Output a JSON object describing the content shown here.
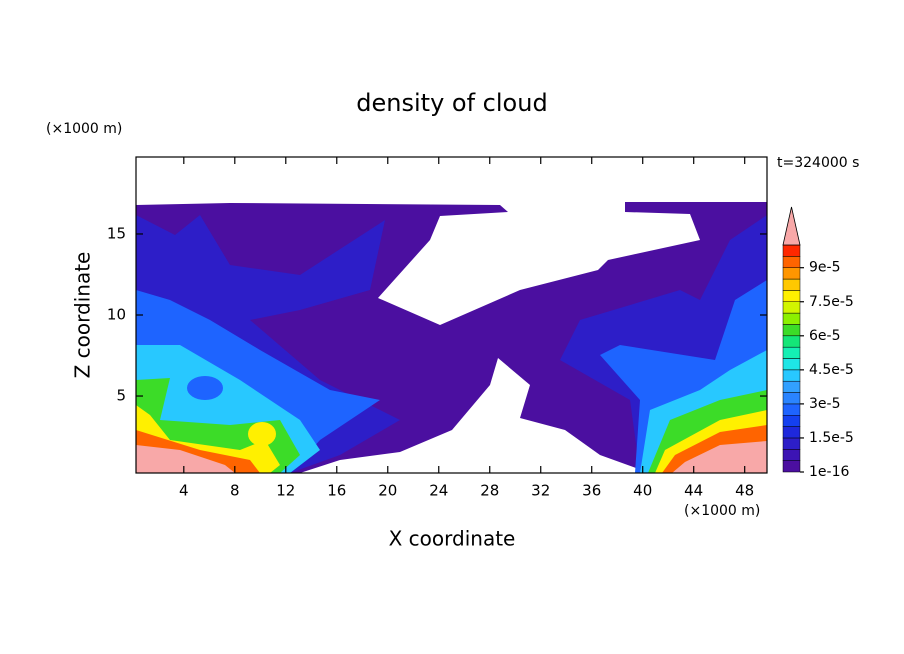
{
  "chart_data": {
    "type": "contour",
    "title": "density of cloud",
    "x_label": "X coordinate",
    "y_label": "Z coordinate",
    "x_unit": "(×1000 m)",
    "y_unit": "(×1000 m)",
    "annotation": "t=324000 s",
    "xlim": [
      0.25,
      49.75
    ],
    "xticks": [
      4,
      8,
      12,
      16,
      20,
      24,
      28,
      32,
      36,
      40,
      44,
      48
    ],
    "ylim": [
      0.25,
      19.75
    ],
    "yticks": [
      5,
      10,
      15
    ],
    "colorbar": {
      "lim": [
        0,
        0.0001
      ],
      "ticks": [
        1e-16,
        {
          "value": 1.5e-05,
          "label": "1.5e-5"
        },
        {
          "value": 3e-05,
          "label": "3e-5"
        },
        {
          "value": 4.5e-05,
          "label": "4.5e-5"
        },
        {
          "value": 6e-05,
          "label": "6e-5"
        },
        {
          "value": 7.5e-05,
          "label": "7.5e-5"
        },
        {
          "value": 9e-05,
          "label": "9e-5"
        }
      ],
      "colors": [
        "#4b0fa0",
        "#3c14b4",
        "#2d1ec8",
        "#1e28dc",
        "#1440f0",
        "#1e64ff",
        "#2a84ff",
        "#32a0ff",
        "#28c8ff",
        "#1ee6e6",
        "#14f0b4",
        "#14e678",
        "#3cdc28",
        "#8cf000",
        "#d2f500",
        "#fff000",
        "#ffc800",
        "#ff9600",
        "#ff6400",
        "#ff2800"
      ],
      "extend_color": "#f8a8a8"
    }
  }
}
